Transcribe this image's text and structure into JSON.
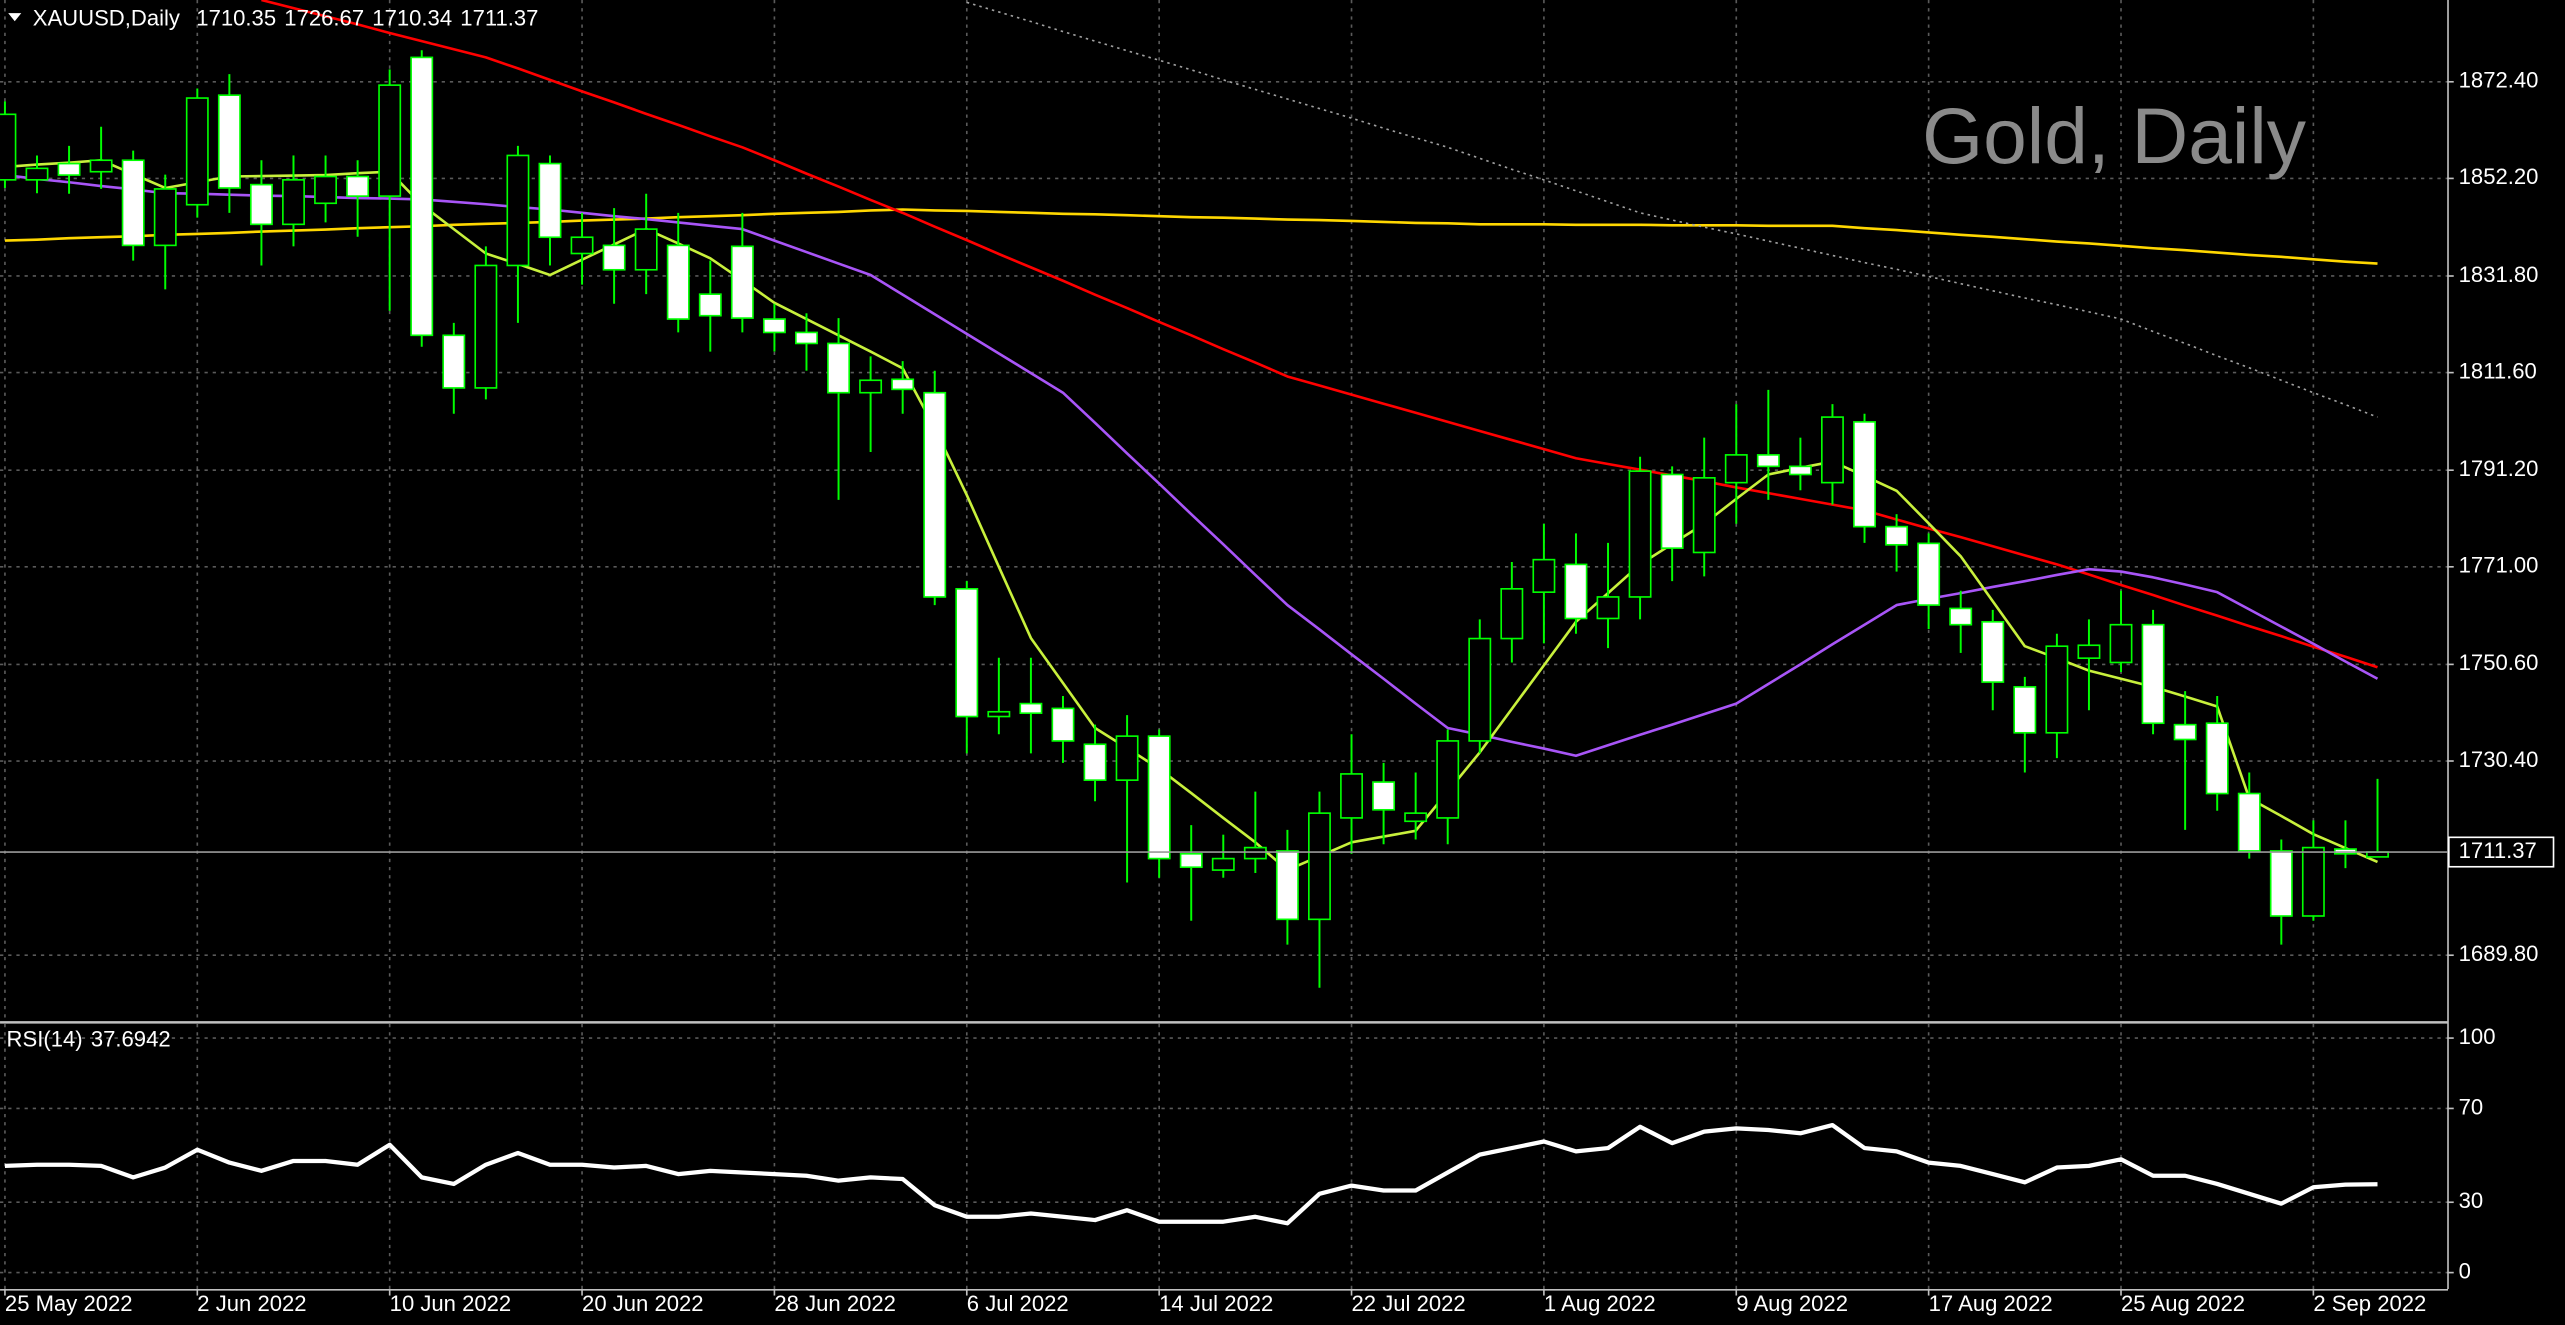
{
  "chart_data": [
    {
      "type": "candlestick",
      "title": "XAUUSD,Daily",
      "subtitle": "Gold, Daily",
      "categories": [
        "25 May 2022",
        null,
        null,
        null,
        null,
        null,
        "2 Jun 2022",
        null,
        null,
        null,
        null,
        null,
        "10 Jun 2022",
        null,
        null,
        null,
        null,
        null,
        "20 Jun 2022",
        null,
        null,
        null,
        null,
        null,
        "28 Jun 2022",
        null,
        null,
        null,
        null,
        null,
        "6 Jul 2022",
        null,
        null,
        null,
        null,
        null,
        "14 Jul 2022",
        null,
        null,
        null,
        null,
        null,
        "22 Jul 2022",
        null,
        null,
        null,
        null,
        null,
        "1 Aug 2022",
        null,
        null,
        null,
        null,
        null,
        "9 Aug 2022",
        null,
        null,
        null,
        null,
        null,
        "17 Aug 2022",
        null,
        null,
        null,
        null,
        null,
        "25 Aug 2022",
        null,
        null,
        null,
        null,
        null,
        "2 Sep 2022",
        null,
        null
      ],
      "open": [
        1851.9,
        1851.9,
        1855.3,
        1853.6,
        1856.0,
        1838.2,
        1846.7,
        1869.6,
        1850.9,
        1842.6,
        1847.0,
        1852.6,
        1848.5,
        1877.5,
        1819.4,
        1808.4,
        1834.0,
        1855.3,
        1836.5,
        1838.2,
        1833.1,
        1838.2,
        1828.0,
        1838.0,
        1822.8,
        1820.0,
        1817.7,
        1807.4,
        1810.2,
        1807.4,
        1766.4,
        1739.7,
        1742.4,
        1741.4,
        1733.9,
        1726.4,
        1735.6,
        1711.0,
        1707.6,
        1710.0,
        1711.6,
        1697.3,
        1718.5,
        1726.0,
        1717.8,
        1718.5,
        1734.6,
        1756.0,
        1765.7,
        1771.5,
        1760.2,
        1764.7,
        1790.3,
        1774.0,
        1788.6,
        1794.4,
        1792.0,
        1788.6,
        1801.3,
        1779.4,
        1775.9,
        1762.3,
        1759.5,
        1745.9,
        1736.3,
        1751.9,
        1751.0,
        1758.9,
        1738.0,
        1738.3,
        1723.6,
        1711.6,
        1698.0,
        1712.0,
        1710.35
      ],
      "high": [
        1868.3,
        1857.0,
        1859.0,
        1863.0,
        1858.0,
        1853.0,
        1871.0,
        1874.0,
        1856.0,
        1857.0,
        1857.0,
        1856.0,
        1875.0,
        1879.0,
        1822.0,
        1838.0,
        1859.0,
        1857.0,
        1845.0,
        1846.0,
        1849.0,
        1845.0,
        1835.0,
        1845.0,
        1826.0,
        1824.0,
        1823.0,
        1815.0,
        1814.0,
        1812.0,
        1768.0,
        1752.0,
        1752.0,
        1744.0,
        1738.0,
        1740.0,
        1737.0,
        1717.0,
        1715.0,
        1724.0,
        1716.0,
        1724.0,
        1736.0,
        1730.0,
        1728.0,
        1737.0,
        1760.0,
        1772.0,
        1780.0,
        1778.0,
        1776.0,
        1794.0,
        1792.0,
        1798.0,
        1805.0,
        1808.0,
        1798.0,
        1805.0,
        1803.0,
        1782.0,
        1778.0,
        1766.0,
        1762.0,
        1748.0,
        1757.0,
        1760.0,
        1766.0,
        1762.0,
        1745.0,
        1744.0,
        1728.0,
        1714.0,
        1718.0,
        1718.0,
        1726.67
      ],
      "low": [
        1850.2,
        1849.1,
        1849.0,
        1850.0,
        1835.0,
        1829.0,
        1844.0,
        1845.0,
        1834.0,
        1838.0,
        1843.0,
        1840.0,
        1824.5,
        1817.0,
        1803.0,
        1806.0,
        1822.0,
        1834.0,
        1830.0,
        1826.0,
        1828.0,
        1820.0,
        1816.0,
        1820.0,
        1816.0,
        1812.0,
        1785.0,
        1795.0,
        1803.0,
        1763.0,
        1732.0,
        1736.0,
        1732.0,
        1730.0,
        1722.0,
        1705.0,
        1706.0,
        1697.0,
        1706.0,
        1707.0,
        1692.0,
        1683.0,
        1711.0,
        1713.0,
        1714.0,
        1713.0,
        1732.0,
        1751.0,
        1755.0,
        1757.0,
        1754.0,
        1760.0,
        1768.0,
        1769.0,
        1780.0,
        1785.0,
        1787.0,
        1784.0,
        1776.0,
        1770.0,
        1758.0,
        1753.0,
        1741.0,
        1728.0,
        1731.0,
        1741.0,
        1749.0,
        1736.0,
        1716.0,
        1720.0,
        1710.0,
        1692.0,
        1697.0,
        1708.0,
        1710.34
      ],
      "close": [
        1865.6,
        1854.3,
        1852.9,
        1856.0,
        1838.2,
        1850.0,
        1869.0,
        1850.2,
        1842.6,
        1851.9,
        1852.6,
        1848.5,
        1871.7,
        1819.4,
        1808.4,
        1834.0,
        1857.0,
        1839.9,
        1839.9,
        1833.1,
        1841.6,
        1822.8,
        1823.5,
        1823.0,
        1820.0,
        1817.7,
        1807.4,
        1810.0,
        1808.1,
        1764.7,
        1739.7,
        1740.7,
        1740.4,
        1734.6,
        1726.4,
        1735.6,
        1710.0,
        1708.2,
        1710.0,
        1712.3,
        1697.3,
        1719.5,
        1727.7,
        1720.2,
        1719.5,
        1734.6,
        1756.0,
        1766.4,
        1772.5,
        1760.2,
        1764.7,
        1791.0,
        1774.9,
        1789.6,
        1794.4,
        1792.0,
        1790.3,
        1802.3,
        1779.4,
        1775.6,
        1763.0,
        1758.9,
        1746.9,
        1736.3,
        1754.4,
        1754.6,
        1758.9,
        1738.3,
        1734.9,
        1723.6,
        1711.6,
        1698.0,
        1712.3,
        1711.0,
        1711.37
      ],
      "bull_color": "#000000",
      "bear_color": "#ffffff",
      "wick_color": "#00ff00",
      "series": [
        {
          "color": "#ffd700",
          "style": "solid",
          "values": [
            1839.2,
            1839.4,
            1839.7,
            1839.9,
            1840.1,
            1840.4,
            1840.6,
            1840.8,
            1841.1,
            1841.3,
            1841.5,
            1841.8,
            1842.0,
            1842.2,
            1842.5,
            1842.7,
            1842.9,
            1843.1,
            1843.4,
            1843.6,
            1843.8,
            1844.1,
            1844.3,
            1844.5,
            1844.8,
            1845.0,
            1845.2,
            1845.5,
            1845.7,
            1845.5,
            1845.4,
            1845.2,
            1845.0,
            1844.8,
            1844.7,
            1844.5,
            1844.3,
            1844.1,
            1844.0,
            1843.8,
            1843.6,
            1843.5,
            1843.3,
            1843.1,
            1842.9,
            1842.8,
            1842.6,
            1842.6,
            1842.6,
            1842.5,
            1842.5,
            1842.5,
            1842.4,
            1842.4,
            1842.4,
            1842.3,
            1842.3,
            1842.3,
            1841.8,
            1841.4,
            1840.9,
            1840.4,
            1840.0,
            1839.5,
            1839.0,
            1838.6,
            1838.1,
            1837.6,
            1837.2,
            1836.7,
            1836.2,
            1835.8,
            1835.3,
            1834.8,
            1834.4
          ]
        },
        {
          "color": "#a0a0a0",
          "style": "dotted",
          "values": [
            null,
            null,
            null,
            null,
            null,
            null,
            null,
            null,
            null,
            null,
            null,
            null,
            null,
            null,
            null,
            null,
            null,
            null,
            null,
            null,
            null,
            null,
            null,
            null,
            null,
            null,
            null,
            null,
            null,
            null,
            1889.0,
            1887.0,
            1885.0,
            1882.9,
            1880.9,
            1878.9,
            1876.9,
            1874.9,
            1872.8,
            1870.8,
            1868.8,
            1866.8,
            1864.8,
            1862.7,
            1860.7,
            1858.7,
            1856.4,
            1854.1,
            1851.9,
            1849.6,
            1847.3,
            1845.0,
            1843.5,
            1842.0,
            1840.6,
            1839.1,
            1837.6,
            1836.1,
            1834.6,
            1833.2,
            1831.7,
            1830.2,
            1828.7,
            1827.2,
            1825.8,
            1824.3,
            1822.8,
            1820.2,
            1817.7,
            1815.1,
            1812.6,
            1810.0,
            1807.4,
            1804.9,
            1802.3
          ]
        },
        {
          "color": "#ff0000",
          "style": "solid",
          "values": [
            null,
            null,
            null,
            null,
            null,
            null,
            null,
            null,
            1889.5,
            1887.8,
            1886.1,
            1884.4,
            1882.6,
            1880.9,
            1879.2,
            1877.5,
            1875.2,
            1872.8,
            1870.4,
            1868.1,
            1865.7,
            1863.4,
            1861.0,
            1858.7,
            1856.0,
            1853.2,
            1850.5,
            1847.7,
            1845.0,
            1842.1,
            1839.3,
            1836.4,
            1833.6,
            1830.8,
            1827.9,
            1825.1,
            1822.2,
            1819.4,
            1816.5,
            1813.7,
            1810.8,
            1808.9,
            1807.0,
            1805.1,
            1803.2,
            1801.3,
            1799.4,
            1797.5,
            1795.6,
            1793.7,
            1792.5,
            1791.3,
            1790.1,
            1788.9,
            1787.6,
            1786.4,
            1785.2,
            1784.0,
            1782.8,
            1780.9,
            1779.0,
            1777.2,
            1775.3,
            1773.4,
            1771.5,
            1769.4,
            1767.2,
            1765.1,
            1762.9,
            1760.8,
            1758.6,
            1756.5,
            1754.3,
            1752.2,
            1750.0
          ]
        },
        {
          "color": "#a855f7",
          "style": "solid",
          "values": [
            1852.9,
            1852.1,
            1851.4,
            1850.6,
            1849.9,
            1849.1,
            1849.0,
            1848.8,
            1848.6,
            1848.5,
            1848.3,
            1848.1,
            1848.0,
            1847.8,
            1847.3,
            1846.8,
            1846.2,
            1845.7,
            1845.0,
            1844.3,
            1843.7,
            1843.0,
            1842.3,
            1841.6,
            1839.2,
            1836.8,
            1834.4,
            1832.0,
            1827.9,
            1823.8,
            1819.7,
            1815.6,
            1811.5,
            1807.4,
            1801.1,
            1794.7,
            1788.4,
            1782.0,
            1775.7,
            1769.3,
            1763.0,
            1757.9,
            1752.7,
            1747.6,
            1742.4,
            1737.3,
            1735.9,
            1734.4,
            1733.0,
            1731.5,
            1733.7,
            1735.9,
            1738.0,
            1740.2,
            1742.4,
            1746.5,
            1750.6,
            1754.8,
            1758.9,
            1763.0,
            1764.3,
            1765.5,
            1766.8,
            1768.0,
            1769.3,
            1770.5,
            1770.0,
            1768.8,
            1767.3,
            1765.7,
            1762.1,
            1758.5,
            1754.9,
            1751.2,
            1747.6
          ]
        },
        {
          "color": "#c8f03c",
          "style": "solid",
          "values": [
            1854.6,
            1855.1,
            1855.5,
            1856.0,
            1853.1,
            1850.2,
            1851.4,
            1852.6,
            1852.7,
            1852.8,
            1852.9,
            1853.3,
            1853.6,
            1846.7,
            1841.6,
            1836.5,
            1834.3,
            1832.0,
            1835.2,
            1838.4,
            1841.6,
            1838.6,
            1835.5,
            1830.9,
            1826.2,
            1822.8,
            1819.4,
            1816.0,
            1812.5,
            1800.0,
            1786.0,
            1771.0,
            1756.1,
            1746.7,
            1737.3,
            1733.1,
            1728.8,
            1723.7,
            1718.5,
            1713.4,
            1707.6,
            1710.5,
            1713.4,
            1714.6,
            1715.8,
            1724.0,
            1732.2,
            1741.3,
            1750.4,
            1759.5,
            1765.5,
            1771.5,
            1775.8,
            1780.0,
            1785.2,
            1790.3,
            1791.7,
            1793.0,
            1790.0,
            1786.9,
            1780.1,
            1773.2,
            1763.8,
            1754.4,
            1751.9,
            1749.3,
            1747.6,
            1745.9,
            1743.9,
            1741.8,
            1722.6,
            1718.9,
            1715.1,
            1712.2,
            1709.3
          ]
        }
      ],
      "ylim": [
        1676.1,
        1889.5
      ],
      "yticks": [
        {
          "value": 1689.8,
          "label": "1689.80"
        },
        {
          "value": 1730.4,
          "label": "1730.40"
        },
        {
          "value": 1750.6,
          "label": "1750.60"
        },
        {
          "value": 1771.0,
          "label": "1771.00"
        },
        {
          "value": 1791.2,
          "label": "1791.20"
        },
        {
          "value": 1811.6,
          "label": "1811.60"
        },
        {
          "value": 1831.8,
          "label": "1831.80"
        },
        {
          "value": 1852.2,
          "label": "1852.20"
        },
        {
          "value": 1872.4,
          "label": "1872.40"
        }
      ],
      "grid": true
    },
    {
      "type": "line",
      "title": "RSI(14)",
      "color": "#ffffff",
      "values": [
        45.5,
        46.0,
        46.0,
        45.5,
        40.6,
        44.8,
        52.4,
        46.9,
        43.4,
        47.6,
        47.6,
        46.0,
        54.5,
        40.6,
        37.8,
        46.0,
        51.0,
        46.0,
        46.0,
        44.8,
        45.5,
        42.0,
        43.4,
        42.7,
        42.0,
        41.3,
        39.2,
        40.6,
        39.9,
        28.7,
        23.8,
        23.8,
        25.2,
        23.8,
        22.4,
        26.6,
        21.7,
        21.7,
        21.7,
        23.8,
        21.0,
        33.6,
        37.1,
        35.0,
        35.0,
        42.7,
        50.3,
        53.1,
        55.9,
        51.7,
        53.1,
        62.2,
        55.2,
        60.1,
        61.5,
        60.8,
        59.4,
        62.9,
        53.1,
        51.7,
        46.9,
        45.5,
        42.0,
        38.5,
        44.8,
        45.5,
        48.3,
        41.3,
        41.3,
        37.8,
        33.6,
        29.4,
        36.4,
        37.5,
        37.6942
      ],
      "ylim": [
        -7,
        106
      ],
      "yticks": [
        0,
        30,
        70,
        100
      ],
      "grid": true
    }
  ]
}
